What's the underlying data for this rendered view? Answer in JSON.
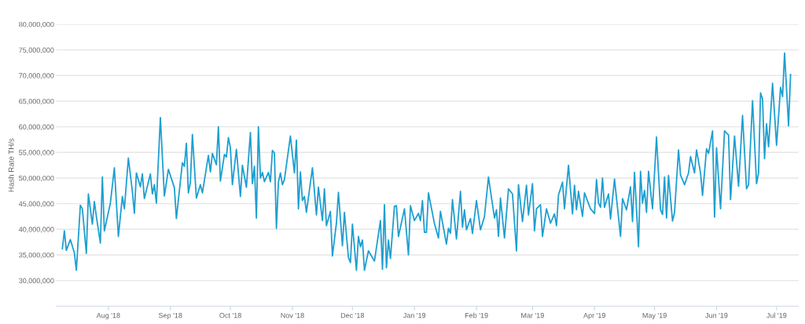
{
  "chart_data": {
    "type": "line",
    "ylabel": "Hash Rate TH/s",
    "x": [
      "2018-07-09",
      "2018-07-10",
      "2018-07-11",
      "2018-07-13",
      "2018-07-15",
      "2018-07-16",
      "2018-07-18",
      "2018-07-19",
      "2018-07-21",
      "2018-07-22",
      "2018-07-24",
      "2018-07-25",
      "2018-07-26",
      "2018-07-28",
      "2018-07-29",
      "2018-07-30",
      "2018-08-02",
      "2018-08-04",
      "2018-08-06",
      "2018-08-08",
      "2018-08-09",
      "2018-08-11",
      "2018-08-13",
      "2018-08-14",
      "2018-08-15",
      "2018-08-17",
      "2018-08-18",
      "2018-08-19",
      "2018-08-22",
      "2018-08-23",
      "2018-08-24",
      "2018-08-25",
      "2018-08-27",
      "2018-08-29",
      "2018-08-31",
      "2018-09-03",
      "2018-09-04",
      "2018-09-07",
      "2018-09-08",
      "2018-09-09",
      "2018-09-10",
      "2018-09-11",
      "2018-09-12",
      "2018-09-14",
      "2018-09-16",
      "2018-09-17",
      "2018-09-20",
      "2018-09-21",
      "2018-09-22",
      "2018-09-24",
      "2018-09-25",
      "2018-09-26",
      "2018-09-28",
      "2018-09-29",
      "2018-09-30",
      "2018-10-01",
      "2018-10-02",
      "2018-10-04",
      "2018-10-06",
      "2018-10-07",
      "2018-10-09",
      "2018-10-11",
      "2018-10-12",
      "2018-10-13",
      "2018-10-14",
      "2018-10-15",
      "2018-10-16",
      "2018-10-17",
      "2018-10-18",
      "2018-10-20",
      "2018-10-21",
      "2018-10-22",
      "2018-10-23",
      "2018-10-24",
      "2018-10-25",
      "2018-10-26",
      "2018-10-27",
      "2018-10-28",
      "2018-10-31",
      "2018-11-02",
      "2018-11-03",
      "2018-11-04",
      "2018-11-05",
      "2018-11-06",
      "2018-11-07",
      "2018-11-08",
      "2018-11-11",
      "2018-11-13",
      "2018-11-14",
      "2018-11-16",
      "2018-11-17",
      "2018-11-18",
      "2018-11-20",
      "2018-11-21",
      "2018-11-23",
      "2018-11-24",
      "2018-11-26",
      "2018-11-27",
      "2018-11-29",
      "2018-11-30",
      "2018-12-01",
      "2018-12-03",
      "2018-12-04",
      "2018-12-05",
      "2018-12-06",
      "2018-12-07",
      "2018-12-09",
      "2018-12-12",
      "2018-12-15",
      "2018-12-16",
      "2018-12-17",
      "2018-12-18",
      "2018-12-19",
      "2018-12-20",
      "2018-12-22",
      "2018-12-23",
      "2018-12-24",
      "2018-12-27",
      "2018-12-29",
      "2018-12-30",
      "2019-01-01",
      "2019-01-03",
      "2019-01-04",
      "2019-01-05",
      "2019-01-06",
      "2019-01-07",
      "2019-01-08",
      "2019-01-11",
      "2019-01-13",
      "2019-01-14",
      "2019-01-17",
      "2019-01-18",
      "2019-01-19",
      "2019-01-20",
      "2019-01-22",
      "2019-01-24",
      "2019-01-25",
      "2019-01-26",
      "2019-01-27",
      "2019-01-29",
      "2019-01-30",
      "2019-02-01",
      "2019-02-03",
      "2019-02-05",
      "2019-02-07",
      "2019-02-10",
      "2019-02-11",
      "2019-02-12",
      "2019-02-13",
      "2019-02-15",
      "2019-02-17",
      "2019-02-19",
      "2019-02-21",
      "2019-02-22",
      "2019-02-24",
      "2019-02-26",
      "2019-02-27",
      "2019-03-01",
      "2019-03-02",
      "2019-03-03",
      "2019-03-05",
      "2019-03-06",
      "2019-03-08",
      "2019-03-10",
      "2019-03-12",
      "2019-03-13",
      "2019-03-14",
      "2019-03-16",
      "2019-03-17",
      "2019-03-19",
      "2019-03-21",
      "2019-03-22",
      "2019-03-23",
      "2019-03-24",
      "2019-03-26",
      "2019-03-27",
      "2019-03-30",
      "2019-04-01",
      "2019-04-02",
      "2019-04-03",
      "2019-04-04",
      "2019-04-05",
      "2019-04-06",
      "2019-04-08",
      "2019-04-09",
      "2019-04-11",
      "2019-04-14",
      "2019-04-15",
      "2019-04-17",
      "2019-04-19",
      "2019-04-20",
      "2019-04-21",
      "2019-04-23",
      "2019-04-24",
      "2019-04-25",
      "2019-04-26",
      "2019-04-27",
      "2019-04-28",
      "2019-04-30",
      "2019-05-02",
      "2019-05-04",
      "2019-05-05",
      "2019-05-06",
      "2019-05-07",
      "2019-05-08",
      "2019-05-10",
      "2019-05-11",
      "2019-05-13",
      "2019-05-14",
      "2019-05-16",
      "2019-05-18",
      "2019-05-19",
      "2019-05-21",
      "2019-05-22",
      "2019-05-24",
      "2019-05-25",
      "2019-05-27",
      "2019-05-28",
      "2019-05-30",
      "2019-05-31",
      "2019-06-01",
      "2019-06-03",
      "2019-06-05",
      "2019-06-07",
      "2019-06-08",
      "2019-06-10",
      "2019-06-12",
      "2019-06-14",
      "2019-06-16",
      "2019-06-17",
      "2019-06-19",
      "2019-06-21",
      "2019-06-22",
      "2019-06-23",
      "2019-06-24",
      "2019-06-25",
      "2019-06-26",
      "2019-06-27",
      "2019-06-29",
      "2019-07-01",
      "2019-07-03",
      "2019-07-04",
      "2019-07-05",
      "2019-07-07",
      "2019-07-08"
    ],
    "series": [
      {
        "color": "#1f9fd1",
        "values": [
          36200000,
          39700000,
          35900000,
          38000000,
          35400000,
          32000000,
          44700000,
          44000000,
          35300000,
          46900000,
          41000000,
          45400000,
          42500000,
          37300000,
          50200000,
          39700000,
          45100000,
          52000000,
          38600000,
          46400000,
          44000000,
          53900000,
          47400000,
          43100000,
          51000000,
          48300000,
          50800000,
          46000000,
          50800000,
          46900000,
          48700000,
          45100000,
          61800000,
          46500000,
          51700000,
          48100000,
          42100000,
          53000000,
          52300000,
          56800000,
          47100000,
          49200000,
          58500000,
          46100000,
          48700000,
          47100000,
          54400000,
          51200000,
          54800000,
          52600000,
          60000000,
          49400000,
          54600000,
          54100000,
          57900000,
          55900000,
          48700000,
          55600000,
          46400000,
          52500000,
          48200000,
          58900000,
          48900000,
          52300000,
          42200000,
          60000000,
          50000000,
          51100000,
          49300000,
          51100000,
          49300000,
          55400000,
          54900000,
          40200000,
          49200000,
          51000000,
          48700000,
          49700000,
          58200000,
          51000000,
          57400000,
          44000000,
          51200000,
          45600000,
          46400000,
          43300000,
          52000000,
          42800000,
          48200000,
          41700000,
          47900000,
          40700000,
          43500000,
          34800000,
          41200000,
          47200000,
          36800000,
          43300000,
          34500000,
          33500000,
          41000000,
          32000000,
          38600000,
          36600000,
          37900000,
          32000000,
          35800000,
          33800000,
          41700000,
          32200000,
          44800000,
          32500000,
          37900000,
          34300000,
          44500000,
          44600000,
          38600000,
          44000000,
          35000000,
          44600000,
          41700000,
          43100000,
          41700000,
          45600000,
          39400000,
          39400000,
          47100000,
          41100000,
          38300000,
          43500000,
          37100000,
          40200000,
          39200000,
          45800000,
          38100000,
          47400000,
          40400000,
          43800000,
          39900000,
          42100000,
          39200000,
          45600000,
          39900000,
          42500000,
          50200000,
          42200000,
          43800000,
          38600000,
          46100000,
          38300000,
          47900000,
          46900000,
          35800000,
          48700000,
          41500000,
          48600000,
          42800000,
          48900000,
          39700000,
          44000000,
          44800000,
          38600000,
          44000000,
          41200000,
          43000000,
          40700000,
          46700000,
          49200000,
          44000000,
          52500000,
          43000000,
          48600000,
          43800000,
          47400000,
          42500000,
          47100000,
          44000000,
          43100000,
          49700000,
          45100000,
          44300000,
          50000000,
          44300000,
          46900000,
          42000000,
          49800000,
          38600000,
          46000000,
          43800000,
          48300000,
          41500000,
          51100000,
          36600000,
          51300000,
          45100000,
          47600000,
          43300000,
          51300000,
          44000000,
          58000000,
          43800000,
          42900000,
          50200000,
          42200000,
          50500000,
          41600000,
          43300000,
          55500000,
          50600000,
          48700000,
          51000000,
          54200000,
          51000000,
          55500000,
          51000000,
          46600000,
          55700000,
          54800000,
          59200000,
          42400000,
          55900000,
          44000000,
          59200000,
          58400000,
          45800000,
          58200000,
          48400000,
          62200000,
          47900000,
          48700000,
          65100000,
          48900000,
          51000000,
          66600000,
          65400000,
          53800000,
          60600000,
          56100000,
          68500000,
          56400000,
          67700000,
          65900000,
          74400000,
          60200000,
          70200000
        ]
      }
    ],
    "xlim": [
      "2018-07-06",
      "2019-07-12"
    ],
    "xticks": [
      {
        "value": "2018-08-01",
        "label": "Aug '18"
      },
      {
        "value": "2018-09-01",
        "label": "Sep '18"
      },
      {
        "value": "2018-10-01",
        "label": "Oct '18"
      },
      {
        "value": "2018-11-01",
        "label": "Nov '18"
      },
      {
        "value": "2018-12-01",
        "label": "Dec '18"
      },
      {
        "value": "2019-01-01",
        "label": "Jan '19"
      },
      {
        "value": "2019-02-01",
        "label": "Feb '19"
      },
      {
        "value": "2019-03-01",
        "label": "Mar '19"
      },
      {
        "value": "2019-04-01",
        "label": "Apr '19"
      },
      {
        "value": "2019-05-01",
        "label": "May '19"
      },
      {
        "value": "2019-06-01",
        "label": "Jun '19"
      },
      {
        "value": "2019-07-01",
        "label": "Jul '19"
      }
    ],
    "ylim": [
      25000000,
      80000000
    ],
    "yticks": [
      {
        "value": 30000000,
        "label": "30,000,000"
      },
      {
        "value": 35000000,
        "label": "35,000,000"
      },
      {
        "value": 40000000,
        "label": "40,000,000"
      },
      {
        "value": 45000000,
        "label": "45,000,000"
      },
      {
        "value": 50000000,
        "label": "50,000,000"
      },
      {
        "value": 55000000,
        "label": "55,000,000"
      },
      {
        "value": 60000000,
        "label": "60,000,000"
      },
      {
        "value": 65000000,
        "label": "65,000,000"
      },
      {
        "value": 70000000,
        "label": "70,000,000"
      },
      {
        "value": 75000000,
        "label": "75,000,000"
      },
      {
        "value": 80000000,
        "label": "80,000,000"
      }
    ],
    "grid": "y",
    "marker": "none",
    "line_style": "solid"
  }
}
